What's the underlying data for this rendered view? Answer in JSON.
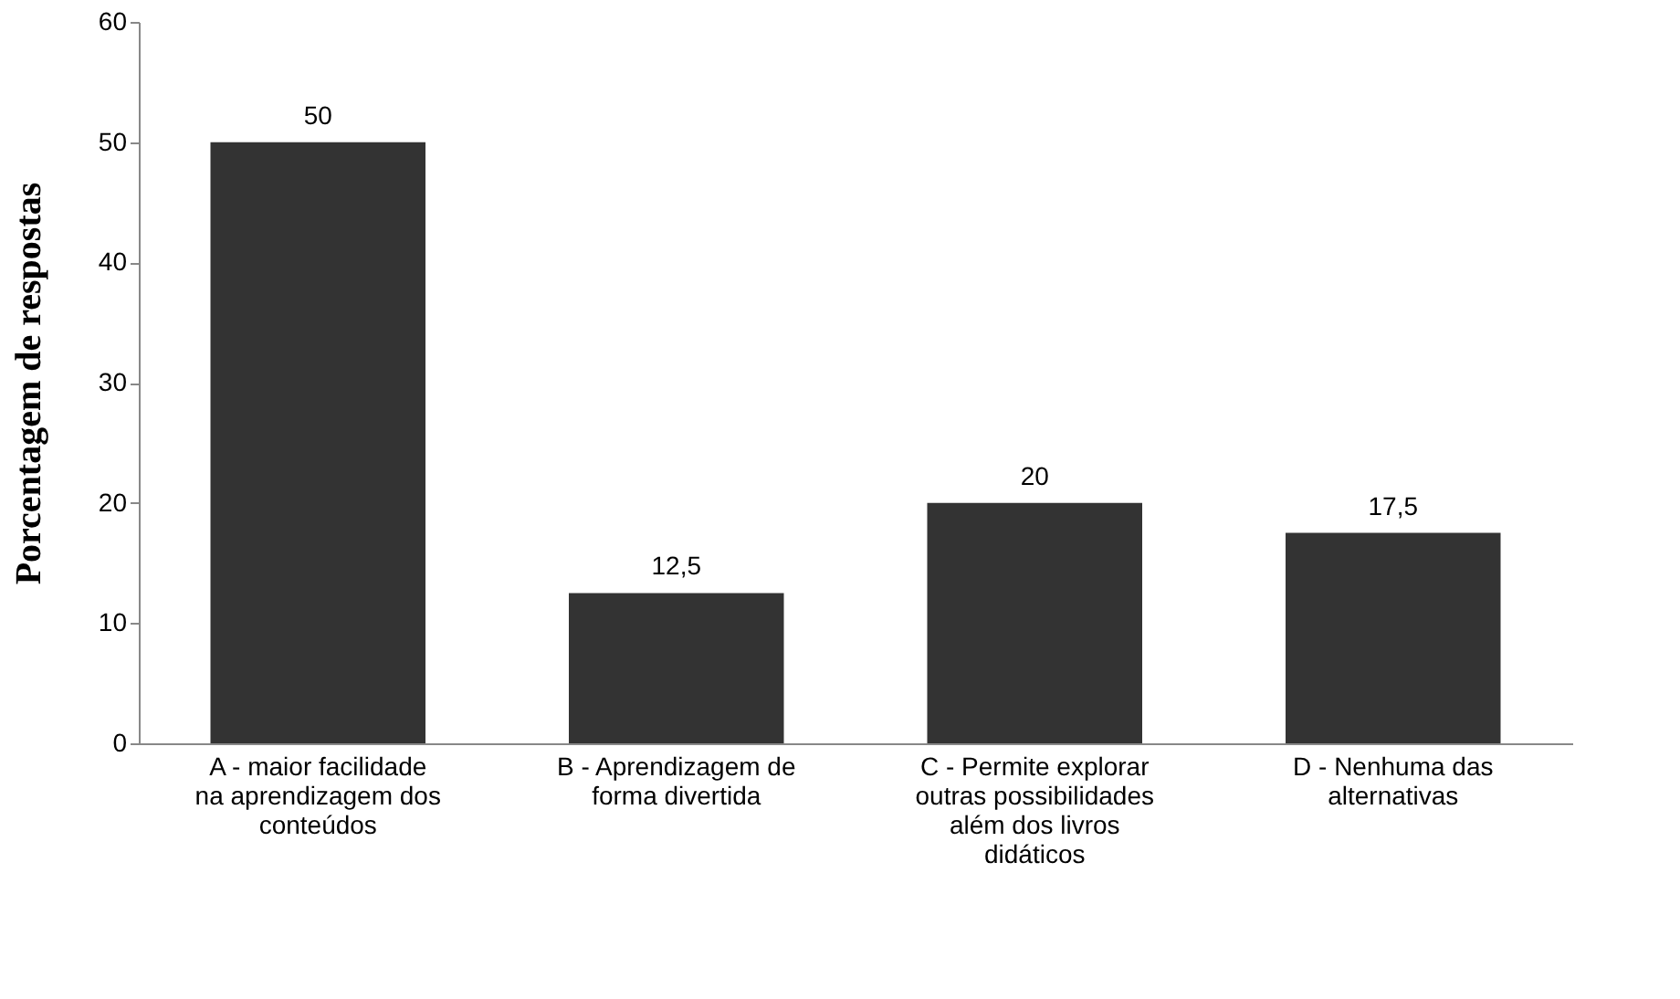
{
  "chart_data": {
    "type": "bar",
    "ylabel": "Porcentagem de respostas",
    "categories": [
      "A - maior facilidade\nna aprendizagem dos\nconteúdos",
      "B - Aprendizagem de\nforma divertida",
      "C - Permite explorar\noutras possibilidades\nalém dos livros\ndidáticos",
      "D - Nenhuma das\nalternativas"
    ],
    "values": [
      50,
      12.5,
      20,
      17.5
    ],
    "value_labels": [
      "50",
      "12,5",
      "20",
      "17,5"
    ],
    "color": "#333333",
    "ylim": [
      0,
      60
    ],
    "yticks": [
      0,
      10,
      20,
      30,
      40,
      50,
      60
    ],
    "grid": false
  }
}
